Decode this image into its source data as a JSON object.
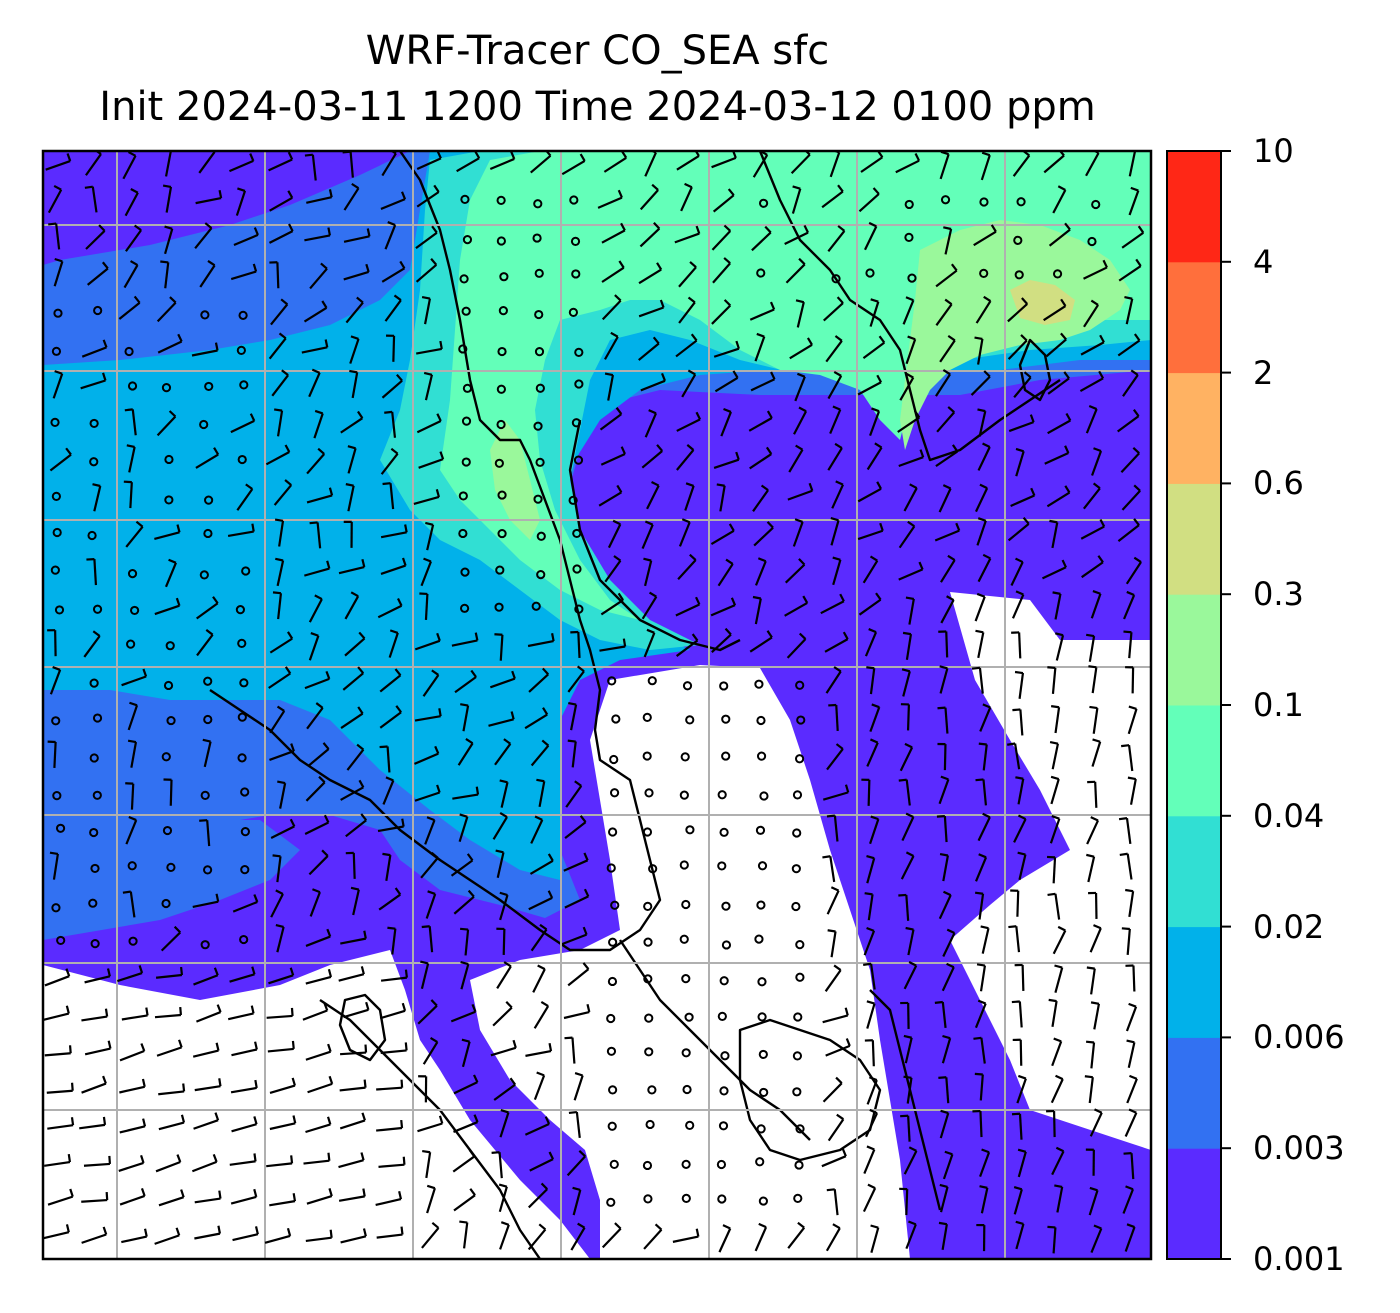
{
  "title": {
    "line1": "WRF-Tracer CO_SEA sfc",
    "line2": "Init 2024-03-11 1200 Time 2024-03-12 0100 ppm"
  },
  "colorbar": {
    "levels": [
      "0.001",
      "0.003",
      "0.006",
      "0.02",
      "0.04",
      "0.1",
      "0.3",
      "0.6",
      "2",
      "4",
      "10"
    ],
    "colors": [
      "#5b2bff",
      "#3271f2",
      "#01b1ea",
      "#31dfd3",
      "#63ffb9",
      "#9af89b",
      "#d1df82",
      "#ffb262",
      "#ff6f3c",
      "#ff2716"
    ]
  },
  "map": {
    "background": "#ffffff",
    "gridlines": "on",
    "grid_color": "#b0b0b0",
    "overlay": "wind-barbs"
  }
}
